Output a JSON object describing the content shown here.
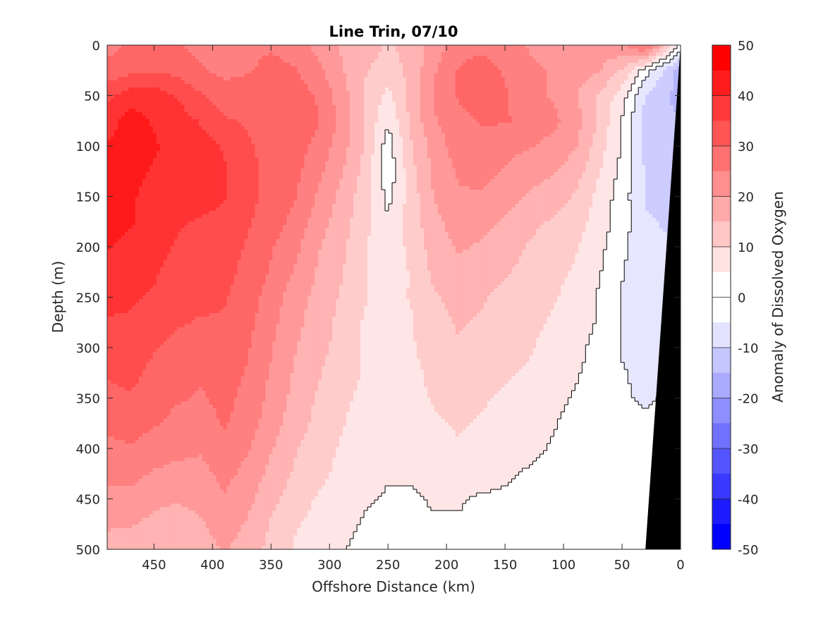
{
  "chart_data": {
    "type": "heatmap",
    "title": "Line Trin, 07/10",
    "xlabel": "Offshore Distance (km)",
    "ylabel": "Depth (m)",
    "colorbar_label": "Anomaly of Dissolved Oxygen",
    "xlim": [
      490,
      0
    ],
    "ylim": [
      0,
      500
    ],
    "y_reversed": true,
    "x_reversed": true,
    "x_ticks": [
      "450",
      "400",
      "350",
      "300",
      "250",
      "200",
      "150",
      "100",
      "50",
      "0"
    ],
    "x_tick_values": [
      450,
      400,
      350,
      300,
      250,
      200,
      150,
      100,
      50,
      0
    ],
    "y_ticks": [
      "0",
      "50",
      "100",
      "150",
      "200",
      "250",
      "300",
      "350",
      "400",
      "450",
      "500"
    ],
    "y_tick_values": [
      0,
      50,
      100,
      150,
      200,
      250,
      300,
      350,
      400,
      450,
      500
    ],
    "colorbar_ticks": [
      "50",
      "40",
      "30",
      "20",
      "10",
      "0",
      "-10",
      "-20",
      "-30",
      "-40",
      "-50"
    ],
    "colorbar_tick_values": [
      50,
      40,
      30,
      20,
      10,
      0,
      -10,
      -20,
      -30,
      -40,
      -50
    ],
    "colorbar_range": [
      -50,
      50
    ],
    "contour_interval": 5,
    "contour_line_level": 0,
    "colormap": {
      "negative": "#0000ff",
      "zero": "#ffffff",
      "positive": "#ff0000"
    },
    "seafloor_color": "#000000",
    "z_depth_levels": [
      0,
      25,
      50,
      75,
      100,
      125,
      150,
      175,
      200,
      225,
      250,
      275,
      300,
      325,
      350,
      375,
      400,
      425,
      450,
      475,
      500
    ],
    "z_distance_km": [
      490,
      470,
      450,
      430,
      410,
      390,
      370,
      350,
      330,
      310,
      290,
      270,
      250,
      230,
      210,
      190,
      170,
      150,
      130,
      110,
      90,
      70,
      50,
      30,
      10,
      0
    ],
    "z": [
      [
        26,
        28,
        29,
        28,
        26,
        25,
        26,
        27,
        25,
        21,
        17,
        15,
        12,
        14,
        20,
        25,
        26,
        24,
        22,
        20,
        18,
        20,
        22,
        30,
        10,
        0
      ],
      [
        29,
        31,
        32,
        31,
        28,
        26,
        27,
        29,
        28,
        24,
        18,
        13,
        10,
        14,
        22,
        28,
        30,
        27,
        24,
        22,
        20,
        18,
        12,
        0,
        -10,
        -15
      ],
      [
        36,
        40,
        40,
        37,
        33,
        30,
        30,
        31,
        30,
        27,
        20,
        12,
        6,
        14,
        23,
        28,
        30,
        28,
        24,
        22,
        18,
        12,
        5,
        -8,
        -12,
        -15
      ],
      [
        40,
        45,
        42,
        40,
        37,
        33,
        32,
        32,
        31,
        28,
        21,
        12,
        3,
        14,
        22,
        26,
        28,
        28,
        26,
        24,
        20,
        12,
        2,
        -9,
        -12,
        -12
      ],
      [
        43,
        45,
        43,
        41,
        40,
        37,
        33,
        31,
        30,
        26,
        20,
        12,
        0,
        12,
        20,
        25,
        26,
        24,
        23,
        21,
        18,
        10,
        2,
        -9,
        -11,
        -11
      ],
      [
        44,
        44,
        42,
        41,
        41,
        38,
        34,
        31,
        29,
        24,
        18,
        11,
        -1,
        11,
        19,
        23,
        24,
        22,
        20,
        18,
        15,
        8,
        1,
        -8,
        -10,
        -10
      ],
      [
        44,
        43,
        41,
        40,
        40,
        38,
        34,
        31,
        28,
        22,
        16,
        10,
        1,
        10,
        18,
        22,
        22,
        20,
        17,
        15,
        12,
        6,
        0,
        -8,
        -9,
        -8
      ],
      [
        44,
        43,
        40,
        38,
        37,
        36,
        33,
        30,
        26,
        20,
        15,
        9,
        3,
        10,
        16,
        20,
        19,
        17,
        14,
        12,
        10,
        5,
        0,
        -7,
        -8,
        -7
      ],
      [
        43,
        41,
        39,
        37,
        36,
        35,
        32,
        28,
        24,
        18,
        14,
        8,
        4,
        9,
        15,
        18,
        17,
        15,
        12,
        10,
        8,
        4,
        -1,
        -7,
        -7,
        -6
      ],
      [
        41,
        40,
        38,
        36,
        35,
        34,
        31,
        27,
        22,
        17,
        13,
        8,
        4,
        8,
        14,
        16,
        15,
        13,
        11,
        9,
        7,
        3,
        -2,
        -7,
        -7,
        -5
      ],
      [
        39,
        38,
        37,
        35,
        34,
        33,
        30,
        25,
        20,
        16,
        12,
        8,
        5,
        8,
        12,
        14,
        13,
        11,
        10,
        8,
        6,
        2,
        -3,
        -6,
        -6,
        -4
      ],
      [
        37,
        37,
        35,
        33,
        32,
        32,
        29,
        24,
        19,
        15,
        11,
        7,
        5,
        7,
        11,
        13,
        12,
        10,
        9,
        7,
        5,
        2,
        -3,
        -6,
        -5,
        -3
      ],
      [
        35,
        36,
        33,
        31,
        30,
        31,
        28,
        23,
        18,
        14,
        11,
        7,
        5,
        7,
        10,
        12,
        11,
        9,
        8,
        6,
        4,
        1,
        -3,
        -5,
        -4,
        -2
      ],
      [
        33,
        34,
        31,
        29,
        28,
        30,
        27,
        22,
        17,
        13,
        10,
        7,
        5,
        6,
        9,
        10,
        9,
        8,
        7,
        5,
        3,
        1,
        -2,
        -4,
        -3,
        -1
      ],
      [
        31,
        32,
        30,
        28,
        27,
        29,
        26,
        21,
        16,
        12,
        9,
        6,
        4,
        6,
        8,
        9,
        8,
        7,
        6,
        4,
        2,
        0,
        -2,
        -3,
        -2,
        -1
      ],
      [
        29,
        30,
        28,
        26,
        25,
        28,
        25,
        20,
        15,
        11,
        8,
        5,
        4,
        5,
        7,
        8,
        7,
        6,
        5,
        3,
        1,
        0,
        -1,
        -2,
        -1,
        0
      ],
      [
        26,
        27,
        25,
        24,
        23,
        26,
        23,
        18,
        13,
        10,
        7,
        5,
        3,
        4,
        6,
        7,
        6,
        5,
        4,
        2,
        1,
        0,
        -1,
        -1,
        -1,
        0
      ],
      [
        24,
        24,
        22,
        21,
        21,
        24,
        21,
        16,
        12,
        9,
        6,
        4,
        3,
        3,
        4,
        5,
        4,
        3,
        2,
        1,
        0,
        0,
        0,
        -1,
        0,
        0
      ],
      [
        21,
        21,
        19,
        18,
        19,
        22,
        19,
        14,
        10,
        7,
        5,
        3,
        2,
        2,
        3,
        3,
        2,
        2,
        1,
        0,
        0,
        0,
        0,
        0,
        0,
        0
      ],
      [
        18,
        18,
        16,
        15,
        17,
        20,
        17,
        12,
        8,
        6,
        4,
        2,
        1,
        1,
        2,
        2,
        1,
        1,
        0,
        0,
        0,
        0,
        0,
        0,
        0,
        0
      ],
      [
        16,
        15,
        13,
        13,
        15,
        18,
        15,
        11,
        7,
        5,
        3,
        1,
        0,
        0,
        1,
        1,
        0,
        0,
        -1,
        -1,
        0,
        0,
        0,
        0,
        0,
        0
      ]
    ],
    "seafloor_polygon_km_m": [
      [
        0,
        0
      ],
      [
        30,
        500
      ],
      [
        0,
        500
      ]
    ]
  }
}
